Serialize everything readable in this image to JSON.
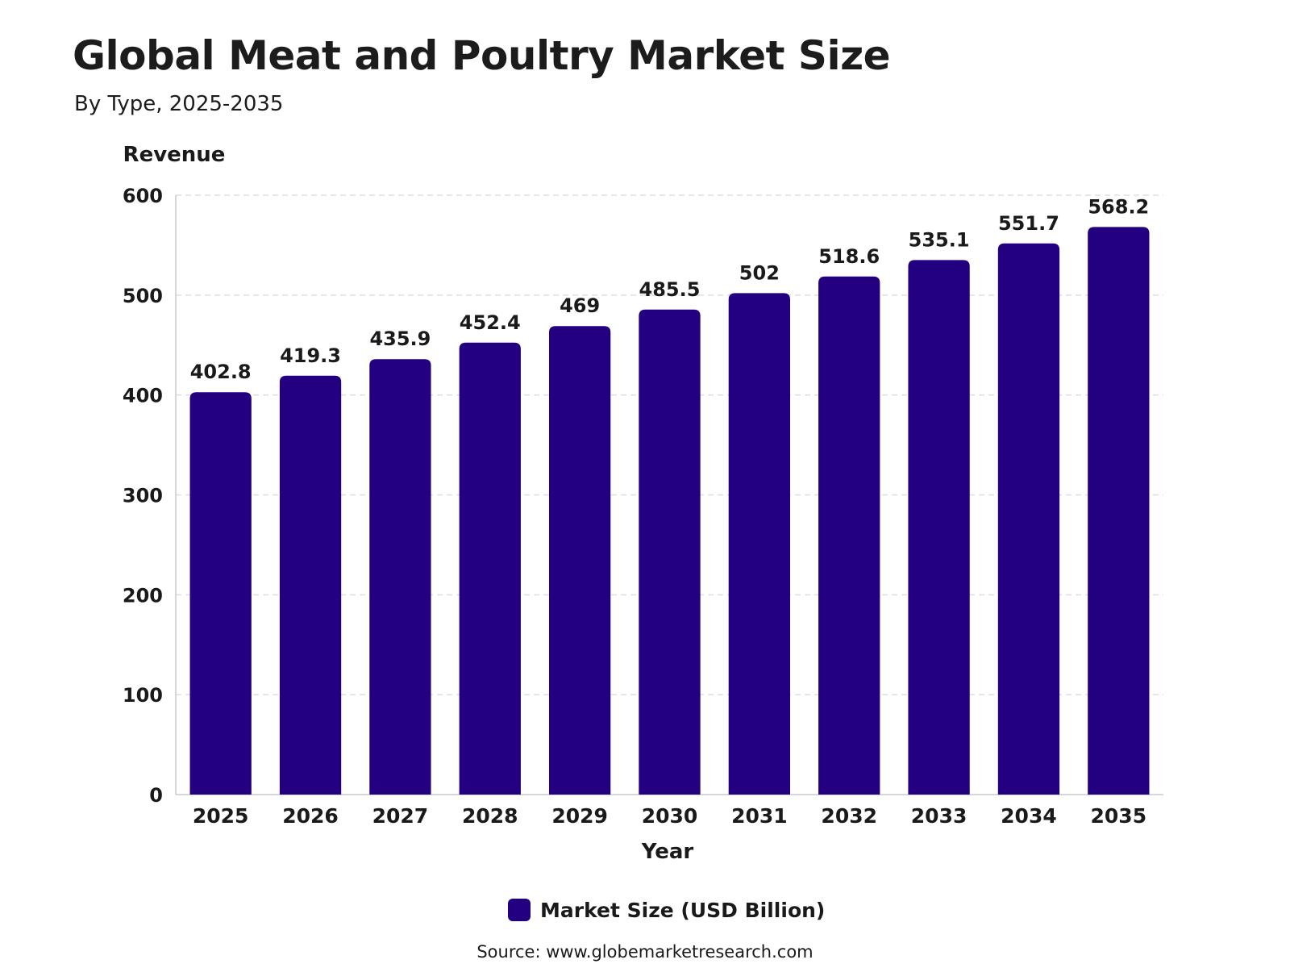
{
  "chart_data": {
    "type": "bar",
    "title": "Global Meat and Poultry Market Size",
    "subtitle": "By Type, 2025-2035",
    "ylabel": "Revenue",
    "xlabel": "Year",
    "categories": [
      "2025",
      "2026",
      "2027",
      "2028",
      "2029",
      "2030",
      "2031",
      "2032",
      "2033",
      "2034",
      "2035"
    ],
    "series": [
      {
        "name": "Market Size (USD Billion)",
        "values": [
          402.8,
          419.3,
          435.9,
          452.4,
          469,
          485.5,
          502,
          518.6,
          535.1,
          551.7,
          568.2
        ]
      }
    ],
    "ylim": [
      0,
      600
    ],
    "yticks": [
      0,
      100,
      200,
      300,
      400,
      500,
      600
    ],
    "grid": true,
    "legend_position": "bottom",
    "bar_color": "#22007f",
    "source": "Source: www.globemarketresearch.com"
  }
}
